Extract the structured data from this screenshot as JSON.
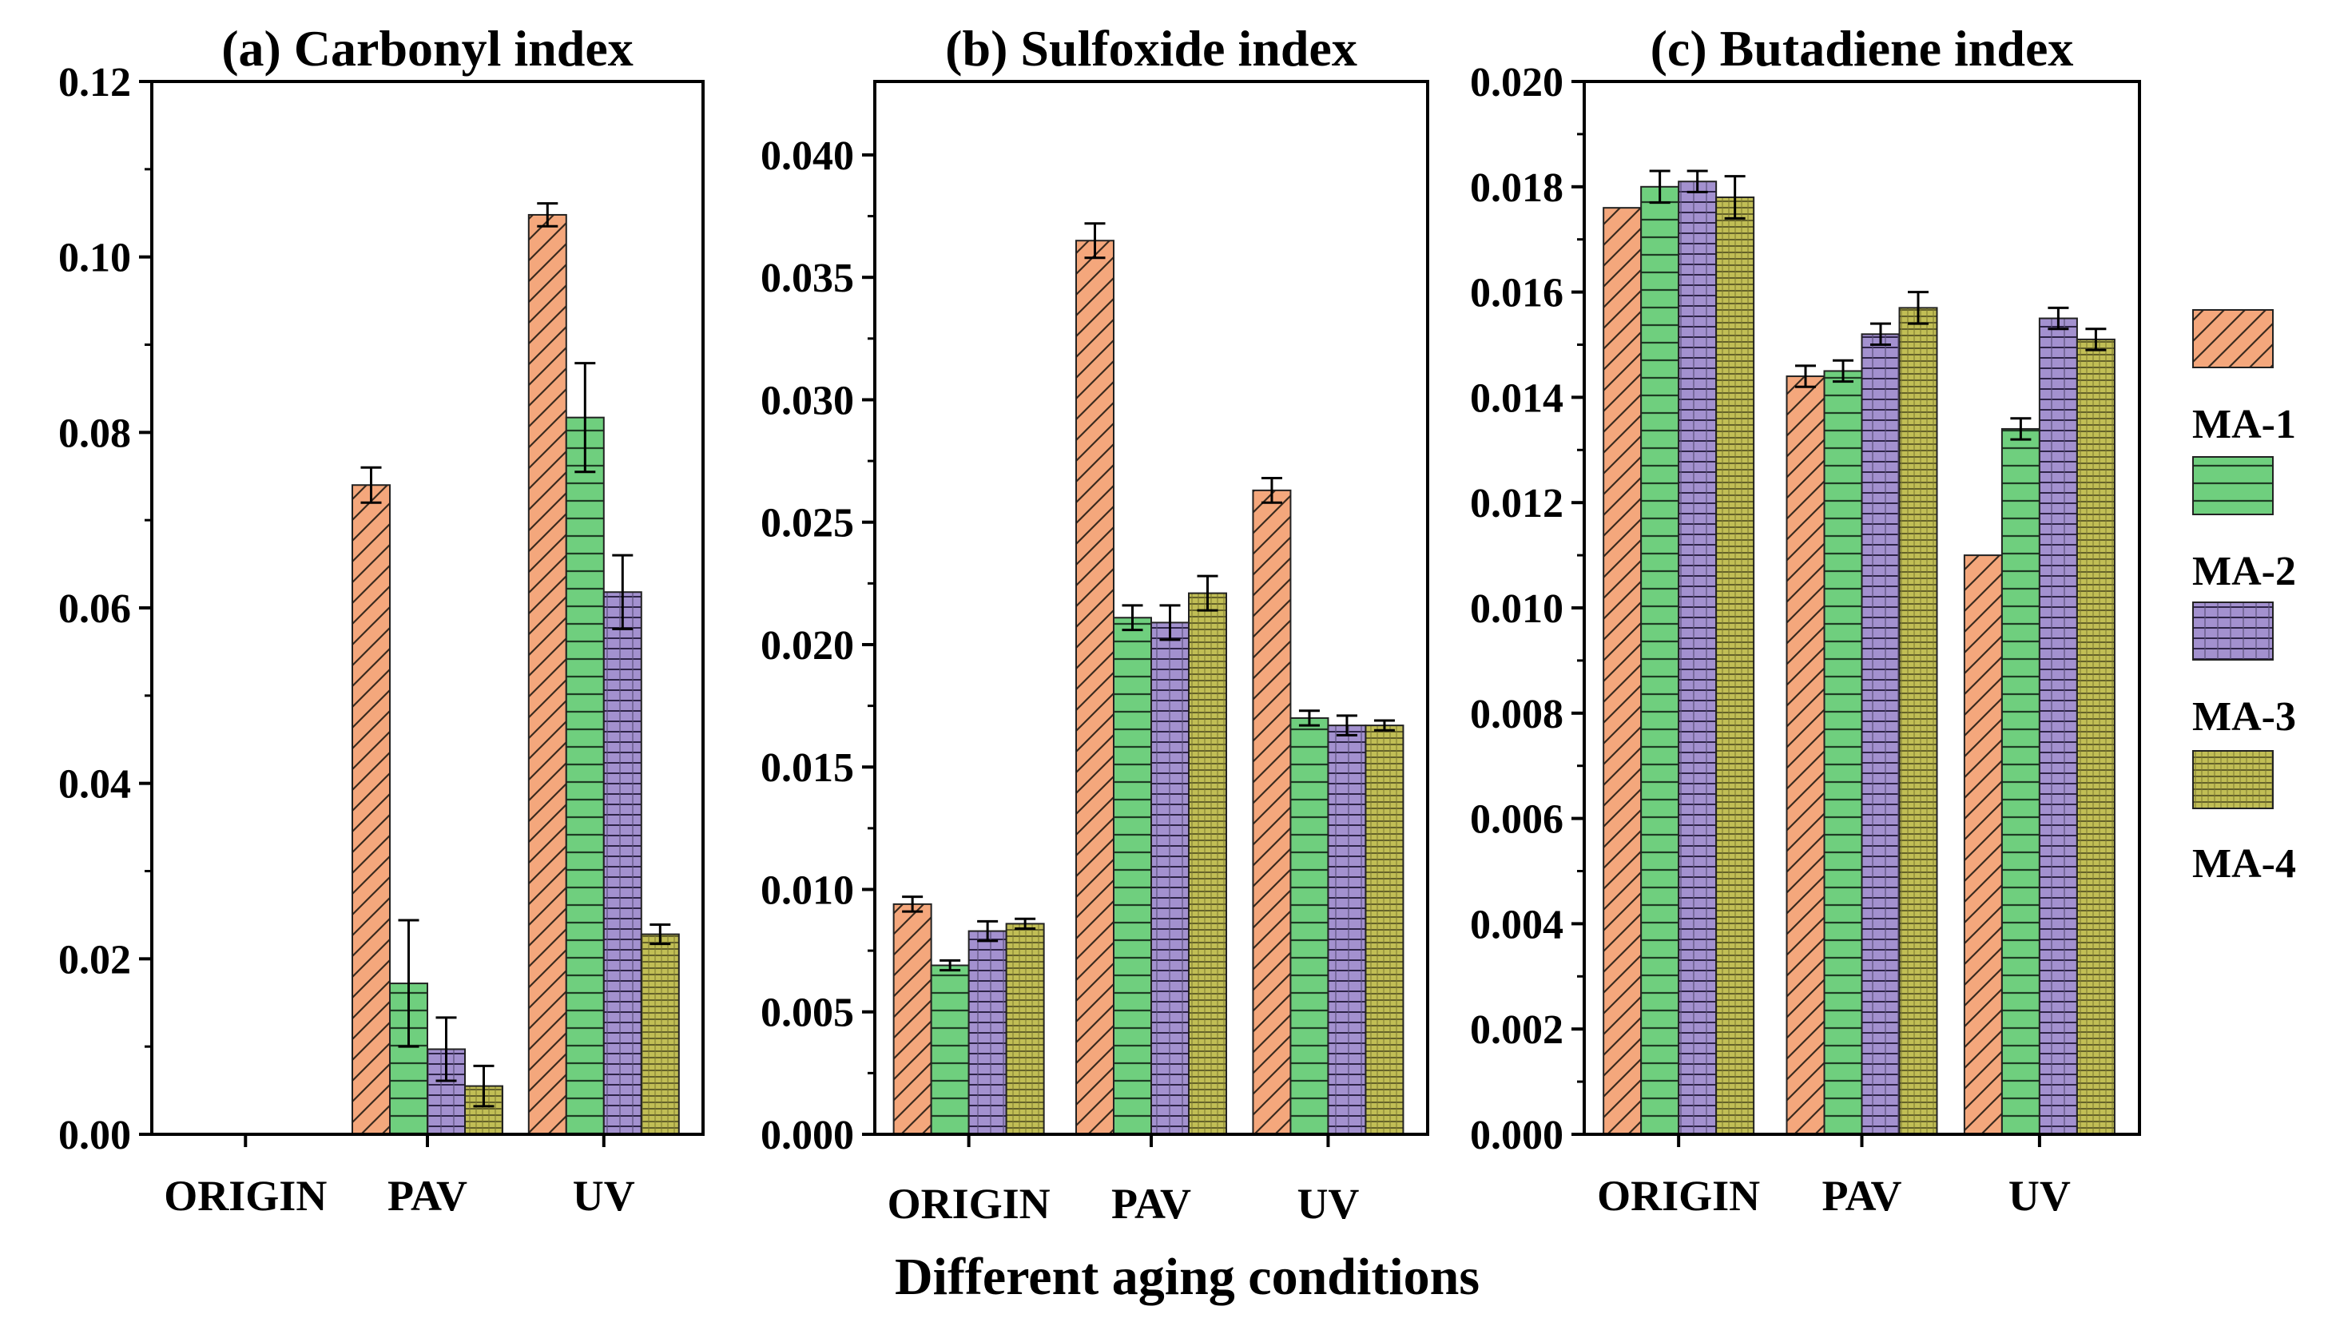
{
  "chart_data": {
    "type": "bar",
    "xlabel": "Different aging conditions",
    "categories": [
      "ORIGIN",
      "PAV",
      "UV"
    ],
    "legend": [
      "MA-1",
      "MA-2",
      "MA-3",
      "MA-4"
    ],
    "legend_position": "right",
    "series_colors": [
      "#f4a77c",
      "#6fcf7e",
      "#a391cf",
      "#b6b34a"
    ],
    "panels": [
      {
        "title": "(a) Carbonyl index",
        "ylim": [
          0,
          0.12
        ],
        "yticks": [
          "0.00",
          "0.02",
          "0.04",
          "0.06",
          "0.08",
          "0.10",
          "0.12"
        ],
        "series": [
          {
            "name": "MA-1",
            "values": [
              0,
              0.074,
              0.1048
            ],
            "errors": [
              0,
              0.002,
              0.0013
            ]
          },
          {
            "name": "MA-2",
            "values": [
              0,
              0.0172,
              0.0817
            ],
            "errors": [
              0,
              0.0072,
              0.0062
            ]
          },
          {
            "name": "MA-3",
            "values": [
              0,
              0.0097,
              0.0618
            ],
            "errors": [
              0,
              0.0036,
              0.0042
            ]
          },
          {
            "name": "MA-4",
            "values": [
              0,
              0.0055,
              0.0228
            ],
            "errors": [
              0,
              0.0023,
              0.0011
            ]
          }
        ]
      },
      {
        "title": "(b) Sulfoxide index",
        "ylim": [
          0,
          0.043
        ],
        "yticks": [
          "0.000",
          "0.005",
          "0.010",
          "0.015",
          "0.020",
          "0.025",
          "0.030",
          "0.035",
          "0.040"
        ],
        "series": [
          {
            "name": "MA-1",
            "values": [
              0.0094,
              0.0365,
              0.0263
            ],
            "errors": [
              0.0003,
              0.0007,
              0.0005
            ]
          },
          {
            "name": "MA-2",
            "values": [
              0.0069,
              0.0211,
              0.017
            ],
            "errors": [
              0.0002,
              0.0005,
              0.0003
            ]
          },
          {
            "name": "MA-3",
            "values": [
              0.0083,
              0.0209,
              0.0167
            ],
            "errors": [
              0.0004,
              0.0007,
              0.0004
            ]
          },
          {
            "name": "MA-4",
            "values": [
              0.0086,
              0.0221,
              0.0167
            ],
            "errors": [
              0.0002,
              0.0007,
              0.0002
            ]
          }
        ]
      },
      {
        "title": "(c) Butadiene index",
        "ylim": [
          0,
          0.02
        ],
        "yticks": [
          "0.000",
          "0.002",
          "0.004",
          "0.006",
          "0.008",
          "0.010",
          "0.012",
          "0.014",
          "0.016",
          "0.018",
          "0.020"
        ],
        "series": [
          {
            "name": "MA-1",
            "values": [
              0.0176,
              0.0144,
              0.011
            ],
            "errors": [
              0,
              0.0002,
              0
            ]
          },
          {
            "name": "MA-2",
            "values": [
              0.018,
              0.0145,
              0.0134
            ],
            "errors": [
              0.0003,
              0.0002,
              0.0002
            ]
          },
          {
            "name": "MA-3",
            "values": [
              0.0181,
              0.0152,
              0.0155
            ],
            "errors": [
              0.0002,
              0.0002,
              0.0002
            ]
          },
          {
            "name": "MA-4",
            "values": [
              0.0178,
              0.0157,
              0.0151
            ],
            "errors": [
              0.0004,
              0.0003,
              0.0002
            ]
          }
        ]
      }
    ]
  }
}
